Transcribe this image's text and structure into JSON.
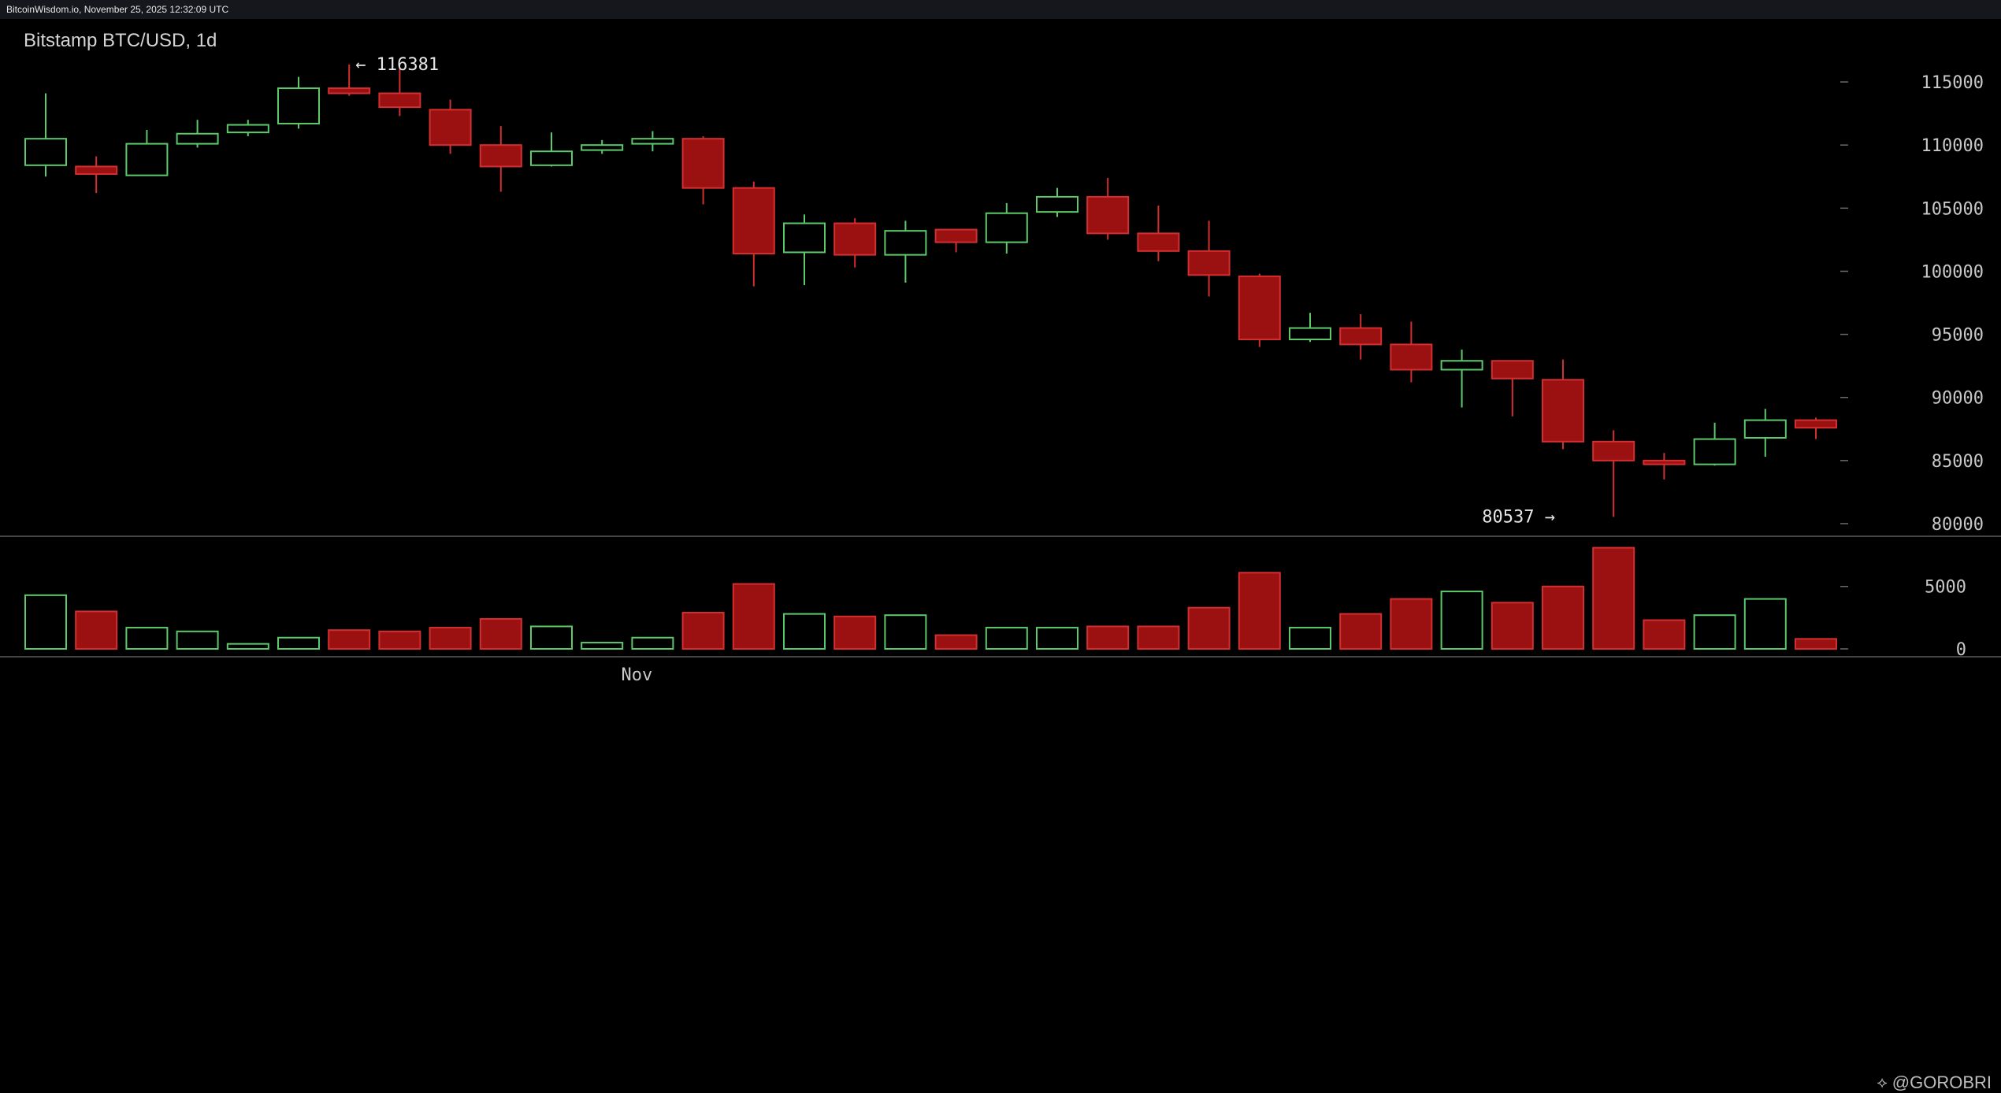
{
  "header": {
    "source_line": "BitcoinWisdom.io, November 25, 2025 12:32:09 UTC"
  },
  "title": "Bitstamp BTC/USD, 1d",
  "watermark": {
    "logo_icon": "binance-square-logo",
    "handle": "@GOROBRI"
  },
  "colors": {
    "up": "#5cc96b",
    "down": "#9b1010",
    "down_edge": "#d23030",
    "background": "#000000"
  },
  "chart_data": {
    "type": "candlestick",
    "price_ylim": [
      79000,
      117500
    ],
    "price_ticks": [
      115000,
      110000,
      105000,
      100000,
      95000,
      90000,
      85000,
      80000
    ],
    "volume_ylim": [
      0,
      8200
    ],
    "volume_ticks": [
      5000,
      0
    ],
    "x_labels": [
      {
        "index": 12,
        "label": "Nov"
      }
    ],
    "annotations": [
      {
        "index": 6,
        "value": 116381,
        "text": "← 116381",
        "side": "right"
      },
      {
        "index": 30,
        "value": 80537,
        "text": "80537 →",
        "side": "left"
      }
    ],
    "candles": [
      {
        "o": 108400,
        "h": 114100,
        "l": 107500,
        "c": 110500,
        "v": 4300
      },
      {
        "o": 108300,
        "h": 109100,
        "l": 106200,
        "c": 107700,
        "v": 3000
      },
      {
        "o": 107600,
        "h": 111200,
        "l": 107600,
        "c": 110100,
        "v": 1700
      },
      {
        "o": 110100,
        "h": 112000,
        "l": 109800,
        "c": 110900,
        "v": 1400
      },
      {
        "o": 111000,
        "h": 112000,
        "l": 110700,
        "c": 111600,
        "v": 400
      },
      {
        "o": 111700,
        "h": 115400,
        "l": 111300,
        "c": 114500,
        "v": 900
      },
      {
        "o": 114500,
        "h": 116381,
        "l": 113900,
        "c": 114100,
        "v": 1500
      },
      {
        "o": 114100,
        "h": 116100,
        "l": 112300,
        "c": 113000,
        "v": 1400
      },
      {
        "o": 112800,
        "h": 113600,
        "l": 109300,
        "c": 110000,
        "v": 1700
      },
      {
        "o": 110000,
        "h": 111500,
        "l": 106300,
        "c": 108300,
        "v": 2400
      },
      {
        "o": 108400,
        "h": 111000,
        "l": 108300,
        "c": 109500,
        "v": 1800
      },
      {
        "o": 109600,
        "h": 110400,
        "l": 109300,
        "c": 110000,
        "v": 500
      },
      {
        "o": 110100,
        "h": 111100,
        "l": 109500,
        "c": 110500,
        "v": 900
      },
      {
        "o": 110500,
        "h": 110700,
        "l": 105300,
        "c": 106600,
        "v": 2900
      },
      {
        "o": 106600,
        "h": 107100,
        "l": 98800,
        "c": 101400,
        "v": 5200
      },
      {
        "o": 101500,
        "h": 104500,
        "l": 98900,
        "c": 103800,
        "v": 2800
      },
      {
        "o": 103800,
        "h": 104200,
        "l": 100300,
        "c": 101300,
        "v": 2600
      },
      {
        "o": 101300,
        "h": 104000,
        "l": 99100,
        "c": 103200,
        "v": 2700
      },
      {
        "o": 103300,
        "h": 103300,
        "l": 101500,
        "c": 102300,
        "v": 1100
      },
      {
        "o": 102300,
        "h": 105400,
        "l": 101400,
        "c": 104600,
        "v": 1700
      },
      {
        "o": 104700,
        "h": 106600,
        "l": 104300,
        "c": 105900,
        "v": 1700
      },
      {
        "o": 105900,
        "h": 107400,
        "l": 102500,
        "c": 103000,
        "v": 1800
      },
      {
        "o": 103000,
        "h": 105200,
        "l": 100800,
        "c": 101600,
        "v": 1800
      },
      {
        "o": 101600,
        "h": 104000,
        "l": 98000,
        "c": 99700,
        "v": 3300
      },
      {
        "o": 99600,
        "h": 99800,
        "l": 94000,
        "c": 94600,
        "v": 6100
      },
      {
        "o": 94600,
        "h": 96700,
        "l": 94400,
        "c": 95500,
        "v": 1700
      },
      {
        "o": 95500,
        "h": 96600,
        "l": 93000,
        "c": 94200,
        "v": 2800
      },
      {
        "o": 94200,
        "h": 96000,
        "l": 91200,
        "c": 92200,
        "v": 4000
      },
      {
        "o": 92200,
        "h": 93800,
        "l": 89200,
        "c": 92900,
        "v": 4600
      },
      {
        "o": 92900,
        "h": 92900,
        "l": 88500,
        "c": 91500,
        "v": 3700
      },
      {
        "o": 91400,
        "h": 93000,
        "l": 85900,
        "c": 86500,
        "v": 5000
      },
      {
        "o": 86500,
        "h": 87400,
        "l": 80537,
        "c": 85000,
        "v": 8100
      },
      {
        "o": 85000,
        "h": 85600,
        "l": 83500,
        "c": 84700,
        "v": 2300
      },
      {
        "o": 84700,
        "h": 88000,
        "l": 84600,
        "c": 86700,
        "v": 2700
      },
      {
        "o": 86800,
        "h": 89100,
        "l": 85300,
        "c": 88200,
        "v": 4000
      },
      {
        "o": 88200,
        "h": 88400,
        "l": 86700,
        "c": 87600,
        "v": 800
      }
    ]
  }
}
